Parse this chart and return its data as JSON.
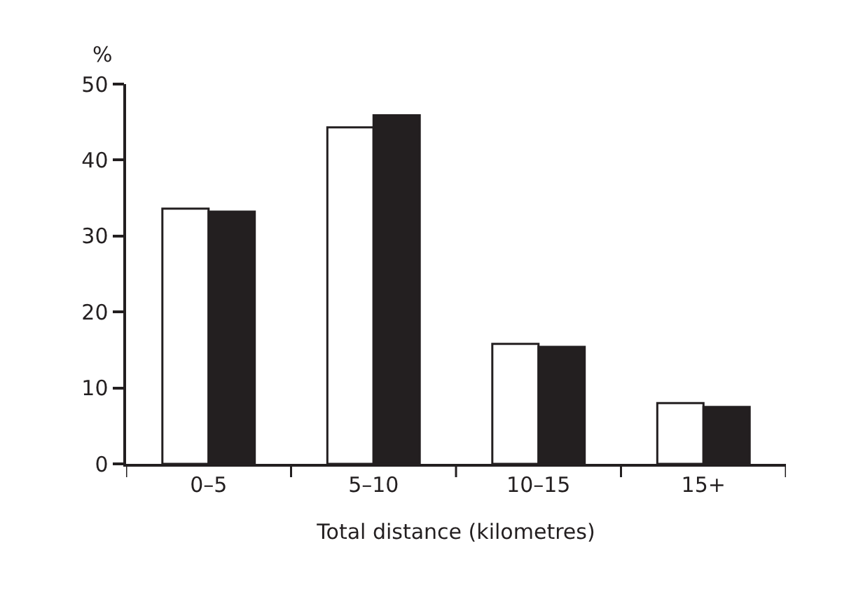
{
  "chart_data": {
    "type": "bar",
    "xlabel": "Total distance (kilometres)",
    "ylabel": "%",
    "categories": [
      "0–5",
      "5–10",
      "10–15",
      "15+"
    ],
    "series": [
      {
        "color": "#ffffff",
        "values": [
          33.6,
          44.3,
          15.8,
          8.0
        ]
      },
      {
        "color": "#231f20",
        "values": [
          33.2,
          45.9,
          15.4,
          7.5
        ]
      }
    ],
    "ylim": [
      0,
      50
    ],
    "yticks": [
      0,
      10,
      20,
      30,
      40,
      50
    ]
  }
}
